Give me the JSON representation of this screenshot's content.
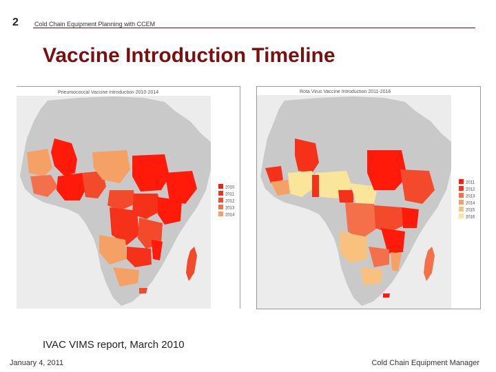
{
  "slide": {
    "number": "2",
    "header": "Cold Chain Equipment Planning with CCEM",
    "title": "Vaccine Introduction Timeline",
    "citation": "IVAC VIMS report, March 2010",
    "date": "January 4, 2011",
    "footer": "Cold Chain Equipment Manager"
  },
  "maps": [
    {
      "title": "Pneumococcal Vaccine Introduction 2010-2014",
      "legend": [
        {
          "label": "2010",
          "color": "#ff1a0a"
        },
        {
          "label": "2011",
          "color": "#f6311a"
        },
        {
          "label": "2012",
          "color": "#f24a2a"
        },
        {
          "label": "2013",
          "color": "#f3704a"
        },
        {
          "label": "2014",
          "color": "#f5a064"
        }
      ]
    },
    {
      "title": "Rota Virus Vaccine Introduction 2011-2016",
      "legend": [
        {
          "label": "2011",
          "color": "#ff1a0a"
        },
        {
          "label": "2012",
          "color": "#f6311a"
        },
        {
          "label": "2013",
          "color": "#f3704a"
        },
        {
          "label": "2014",
          "color": "#f5a064"
        },
        {
          "label": "2015",
          "color": "#f8c27e"
        },
        {
          "label": "2016",
          "color": "#fae69a"
        }
      ]
    }
  ]
}
